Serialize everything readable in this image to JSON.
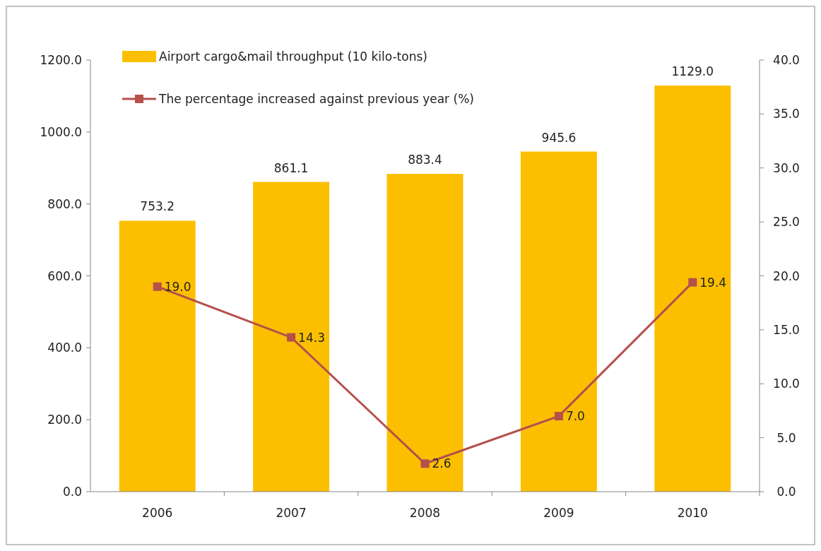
{
  "chart_data": {
    "type": "bar",
    "categories": [
      "2006",
      "2007",
      "2008",
      "2009",
      "2010"
    ],
    "series": [
      {
        "name": "Airport cargo&mail throughput (10 kilo-tons)",
        "color": "#fbbf00",
        "values": [
          753.2,
          861.1,
          883.4,
          945.6,
          1129.0
        ],
        "value_labels": [
          "753.2",
          "861.1",
          "883.4",
          "945.6",
          "1129.0"
        ]
      },
      {
        "name": "The percentage increased against previous year (%)",
        "type": "line",
        "axis": "y2",
        "color": "#b5504b",
        "values": [
          19.0,
          14.3,
          2.6,
          7.0,
          19.4
        ],
        "value_labels": [
          "19.0",
          "14.3",
          "2.6",
          "7.0",
          "19.4"
        ]
      }
    ],
    "ylim": [
      0,
      1200
    ],
    "yticks": [
      {
        "value": 0,
        "label": "0.0"
      },
      {
        "value": 200,
        "label": "200.0"
      },
      {
        "value": 400,
        "label": "400.0"
      },
      {
        "value": 600,
        "label": "600.0"
      },
      {
        "value": 800,
        "label": "800.0"
      },
      {
        "value": 1000,
        "label": "1000.0"
      },
      {
        "value": 1200,
        "label": "1200.0"
      }
    ],
    "y2lim": [
      0,
      40
    ],
    "y2ticks": [
      {
        "value": 0,
        "label": "0.0"
      },
      {
        "value": 5,
        "label": "5.0"
      },
      {
        "value": 10,
        "label": "10.0"
      },
      {
        "value": 15,
        "label": "15.0"
      },
      {
        "value": 20,
        "label": "20.0"
      },
      {
        "value": 25,
        "label": "25.0"
      },
      {
        "value": 30,
        "label": "30.0"
      },
      {
        "value": 35,
        "label": "35.0"
      },
      {
        "value": 40,
        "label": "40.0"
      }
    ],
    "legend": "top left",
    "marker": "square",
    "grid": false
  }
}
